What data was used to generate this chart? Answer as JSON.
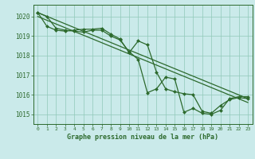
{
  "title": "Graphe pression niveau de la mer (hPa)",
  "bg_color": "#caeaea",
  "grid_color": "#90c8b8",
  "line_color": "#2d6a2d",
  "xlim": [
    -0.5,
    23.5
  ],
  "ylim": [
    1014.5,
    1020.6
  ],
  "yticks": [
    1015,
    1016,
    1017,
    1018,
    1019,
    1020
  ],
  "xticks": [
    0,
    1,
    2,
    3,
    4,
    5,
    6,
    7,
    8,
    9,
    10,
    11,
    12,
    13,
    14,
    15,
    16,
    17,
    18,
    19,
    20,
    21,
    22,
    23
  ],
  "series": [
    {
      "x": [
        0,
        1,
        2,
        3,
        4,
        5,
        6,
        7,
        8,
        9,
        10,
        11,
        12,
        13,
        14,
        15,
        16,
        17,
        18,
        19,
        20,
        21,
        22,
        23
      ],
      "y": [
        1020.2,
        1019.5,
        1019.3,
        1019.25,
        1019.3,
        1019.35,
        1019.35,
        1019.4,
        1019.1,
        1018.85,
        1018.15,
        1018.75,
        1018.55,
        1017.15,
        1016.3,
        1016.15,
        1016.05,
        1016.0,
        1015.15,
        1015.05,
        1015.45,
        1015.75,
        1015.85,
        1015.8
      ],
      "marker": "D",
      "markersize": 2.0,
      "linewidth": 0.9
    },
    {
      "x": [
        0,
        1,
        2,
        3,
        4,
        5,
        6,
        7,
        8,
        9,
        10,
        11,
        12,
        13,
        14,
        15,
        16,
        17,
        18,
        19,
        20,
        21,
        22,
        23
      ],
      "y": [
        1020.2,
        1020.0,
        1019.4,
        1019.3,
        1019.25,
        1019.2,
        1019.3,
        1019.3,
        1019.0,
        1018.8,
        1018.2,
        1017.8,
        1016.1,
        1016.3,
        1016.9,
        1016.8,
        1015.1,
        1015.3,
        1015.05,
        1015.0,
        1015.2,
        1015.8,
        1015.9,
        1015.9
      ],
      "marker": "D",
      "markersize": 2.0,
      "linewidth": 0.9
    },
    {
      "x": [
        0,
        23
      ],
      "y": [
        1020.2,
        1015.8
      ],
      "marker": null,
      "markersize": 0,
      "linewidth": 0.9
    },
    {
      "x": [
        0,
        23
      ],
      "y": [
        1020.0,
        1015.6
      ],
      "marker": null,
      "markersize": 0,
      "linewidth": 0.9
    }
  ]
}
